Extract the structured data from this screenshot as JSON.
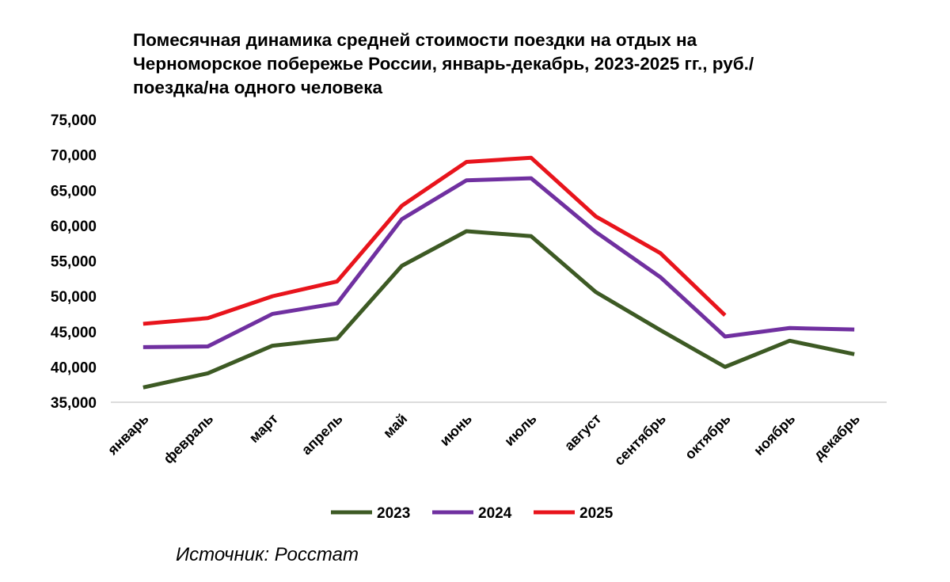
{
  "chart_data": {
    "type": "line",
    "title": "Помесячная динамика средней стоимости поездки на отдых на Черноморское побережье России, январь-декабрь, 2023-2025 гг., руб./поездка/на одного человека",
    "categories": [
      "январь",
      "февраль",
      "март",
      "апрель",
      "май",
      "июнь",
      "июль",
      "август",
      "сентябрь",
      "октябрь",
      "ноябрь",
      "декабрь"
    ],
    "series": [
      {
        "name": "2023",
        "color": "#3d5a24",
        "values": [
          37100,
          39100,
          43000,
          44000,
          54300,
          59200,
          58500,
          50600,
          45200,
          40000,
          43700,
          41800
        ]
      },
      {
        "name": "2024",
        "color": "#7030a0",
        "values": [
          42800,
          42900,
          47500,
          49000,
          60900,
          66400,
          66700,
          59100,
          52700,
          44300,
          45500,
          45300
        ]
      },
      {
        "name": "2025",
        "color": "#e8141c",
        "values": [
          46100,
          46900,
          50000,
          52100,
          62800,
          69000,
          69600,
          61300,
          56100,
          47300,
          null,
          null
        ]
      }
    ],
    "ylim": [
      35000,
      75000
    ],
    "yticks": [
      {
        "value": 35000,
        "label": "35,000"
      },
      {
        "value": 40000,
        "label": "40,000"
      },
      {
        "value": 45000,
        "label": "45,000"
      },
      {
        "value": 50000,
        "label": "50,000"
      },
      {
        "value": 55000,
        "label": "55,000"
      },
      {
        "value": 60000,
        "label": "60,000"
      },
      {
        "value": 65000,
        "label": "65,000"
      },
      {
        "value": 70000,
        "label": "70,000"
      },
      {
        "value": 75000,
        "label": "75,000"
      }
    ],
    "grid": false,
    "legend": "bottom",
    "source": "Источник: Росстат"
  }
}
